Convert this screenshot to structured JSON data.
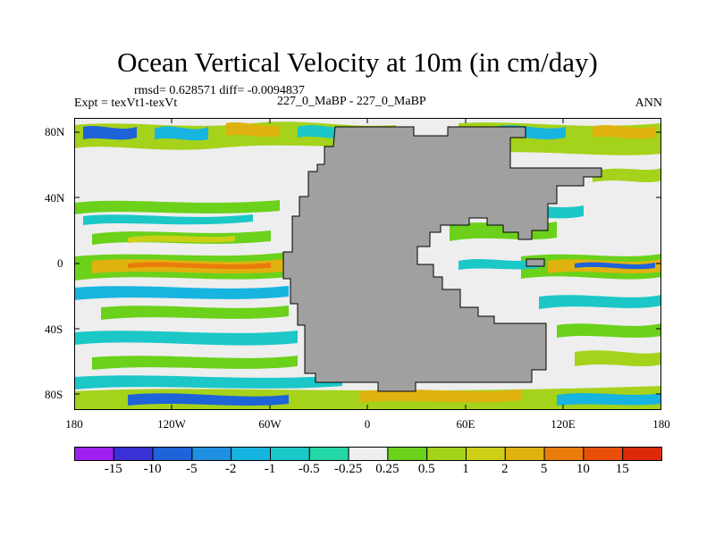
{
  "title": "Ocean Vertical Velocity at 10m (in cm/day)",
  "stats_label": "rmsd= 0.628571 diff= -0.0094837",
  "expt_label": "Expt = texVt1-texVt",
  "case_label": "227_0_MaBP - 227_0_MaBP",
  "season_label": "ANN",
  "lat_labels": [
    "80N",
    "40N",
    "0",
    "40S",
    "80S"
  ],
  "lon_labels": [
    "180",
    "120W",
    "60W",
    "0",
    "60E",
    "120E",
    "180"
  ],
  "colorbar": {
    "labels": [
      "-15",
      "-10",
      "-5",
      "-2",
      "-1",
      "-0.5",
      "-0.25",
      "0.25",
      "0.5",
      "1",
      "2",
      "5",
      "10",
      "15"
    ],
    "colors": [
      "#a020f0",
      "#3b2fd6",
      "#1e63d8",
      "#1f8fe0",
      "#18b4e0",
      "#1cc7c7",
      "#23d7a6",
      "#eeeeee",
      "#6bd11b",
      "#a5d21a",
      "#cccf15",
      "#e0b20f",
      "#ea7c0c",
      "#e8500a",
      "#dd2a0a"
    ]
  },
  "colors": {
    "land": "#a0a0a0",
    "background": "#ffffff"
  }
}
